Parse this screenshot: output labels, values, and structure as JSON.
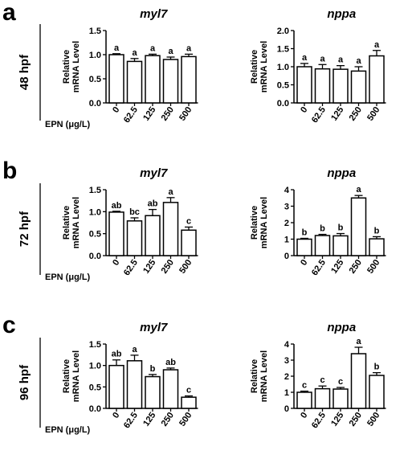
{
  "figure": {
    "rows": [
      {
        "letter": "a",
        "label": "48 hpf"
      },
      {
        "letter": "b",
        "label": "72 hpf"
      },
      {
        "letter": "c",
        "label": "96 hpf"
      }
    ],
    "x_axis_name": "EPN (μg/L)"
  },
  "chart_data": [
    {
      "type": "bar",
      "title": "myl7",
      "ylabel": "Relative mRNA Level",
      "categories": [
        "0",
        "62.5",
        "125",
        "250",
        "500"
      ],
      "values": [
        1.0,
        0.86,
        0.98,
        0.9,
        0.96
      ],
      "errors": [
        0.02,
        0.06,
        0.03,
        0.05,
        0.05
      ],
      "letters": [
        "a",
        "a",
        "a",
        "a",
        "a"
      ],
      "ylim": [
        0,
        1.5
      ],
      "yticks": [
        "0.0",
        "0.5",
        "1.0",
        "1.5"
      ]
    },
    {
      "type": "bar",
      "title": "nppa",
      "ylabel": "Relative mRNA Level",
      "categories": [
        "0",
        "62.5",
        "125",
        "250",
        "500"
      ],
      "values": [
        1.0,
        0.94,
        0.93,
        0.88,
        1.3
      ],
      "errors": [
        0.09,
        0.12,
        0.1,
        0.12,
        0.15
      ],
      "letters": [
        "a",
        "a",
        "a",
        "a",
        "a"
      ],
      "ylim": [
        0,
        2.0
      ],
      "yticks": [
        "0.0",
        "0.5",
        "1.0",
        "1.5",
        "2.0"
      ]
    },
    {
      "type": "bar",
      "title": "myl7",
      "ylabel": "Relative mRNA Level",
      "categories": [
        "0",
        "62.5",
        "125",
        "250",
        "500"
      ],
      "values": [
        0.99,
        0.79,
        0.91,
        1.21,
        0.58
      ],
      "errors": [
        0.02,
        0.07,
        0.14,
        0.11,
        0.07
      ],
      "letters": [
        "ab",
        "bc",
        "ab",
        "a",
        "c"
      ],
      "ylim": [
        0,
        1.5
      ],
      "yticks": [
        "0.0",
        "0.5",
        "1.0",
        "1.5"
      ]
    },
    {
      "type": "bar",
      "title": "nppa",
      "ylabel": "Relative mRNA Level",
      "categories": [
        "0",
        "62.5",
        "125",
        "250",
        "500"
      ],
      "values": [
        1.0,
        1.22,
        1.2,
        3.5,
        1.02
      ],
      "errors": [
        0.05,
        0.07,
        0.14,
        0.15,
        0.13
      ],
      "letters": [
        "b",
        "b",
        "b",
        "a",
        "b"
      ],
      "ylim": [
        0,
        4
      ],
      "yticks": [
        "0",
        "1",
        "2",
        "3",
        "4"
      ]
    },
    {
      "type": "bar",
      "title": "myl7",
      "ylabel": "Relative mRNA Level",
      "categories": [
        "0",
        "62.5",
        "125",
        "250",
        "500"
      ],
      "values": [
        1.0,
        1.11,
        0.74,
        0.9,
        0.26
      ],
      "errors": [
        0.13,
        0.13,
        0.05,
        0.04,
        0.03
      ],
      "letters": [
        "ab",
        "a",
        "b",
        "ab",
        "c"
      ],
      "ylim": [
        0,
        1.5
      ],
      "yticks": [
        "0.0",
        "0.5",
        "1.0",
        "1.5"
      ]
    },
    {
      "type": "bar",
      "title": "nppa",
      "ylabel": "Relative mRNA Level",
      "categories": [
        "0",
        "62.5",
        "125",
        "250",
        "500"
      ],
      "values": [
        1.0,
        1.22,
        1.2,
        3.4,
        2.05
      ],
      "errors": [
        0.07,
        0.17,
        0.1,
        0.4,
        0.17
      ],
      "letters": [
        "c",
        "c",
        "c",
        "a",
        "b"
      ],
      "ylim": [
        0,
        4
      ],
      "yticks": [
        "0",
        "1",
        "2",
        "3",
        "4"
      ]
    }
  ]
}
